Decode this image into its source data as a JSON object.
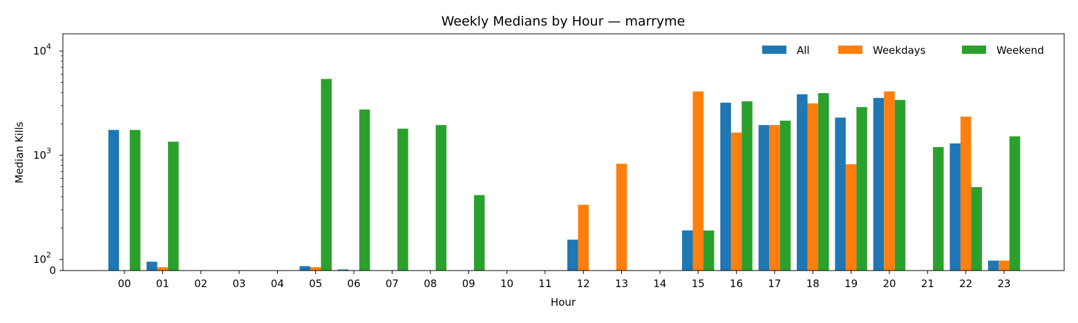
{
  "chart_data": {
    "type": "bar",
    "title": "Weekly Medians by Hour — marryme",
    "xlabel": "Hour",
    "ylabel": "Median Kills",
    "yscale": "symlog",
    "ylim": [
      0,
      14000
    ],
    "categories": [
      "00",
      "01",
      "02",
      "03",
      "04",
      "05",
      "06",
      "07",
      "08",
      "09",
      "10",
      "11",
      "12",
      "13",
      "14",
      "15",
      "16",
      "17",
      "18",
      "19",
      "20",
      "21",
      "22",
      "23"
    ],
    "y_ticks": [
      {
        "value": 0,
        "base": "0",
        "exp": ""
      },
      {
        "value": 100,
        "base": "10",
        "exp": "2"
      },
      {
        "value": 1000,
        "base": "10",
        "exp": "3"
      },
      {
        "value": 10000,
        "base": "10",
        "exp": "4"
      }
    ],
    "legend_position": "top-right",
    "series": [
      {
        "name": "All",
        "color": "#1f77b4",
        "values": [
          1750,
          80,
          0,
          0,
          0,
          40,
          10,
          0,
          0,
          0,
          0,
          0,
          155,
          0,
          0,
          190,
          3200,
          1950,
          3850,
          2300,
          3550,
          0,
          1300,
          90
        ]
      },
      {
        "name": "Weekdays",
        "color": "#ff7f0e",
        "values": [
          0,
          30,
          0,
          0,
          0,
          30,
          0,
          0,
          0,
          0,
          0,
          2,
          335,
          830,
          0,
          4100,
          1650,
          1950,
          3150,
          820,
          4100,
          0,
          2350,
          90
        ]
      },
      {
        "name": "Weekend",
        "color": "#2ca02c",
        "values": [
          1750,
          1350,
          0,
          0,
          0,
          5400,
          2750,
          1800,
          1950,
          415,
          0,
          0,
          0,
          0,
          0,
          190,
          3300,
          2150,
          3950,
          2900,
          3400,
          1200,
          495,
          1520
        ]
      }
    ]
  }
}
